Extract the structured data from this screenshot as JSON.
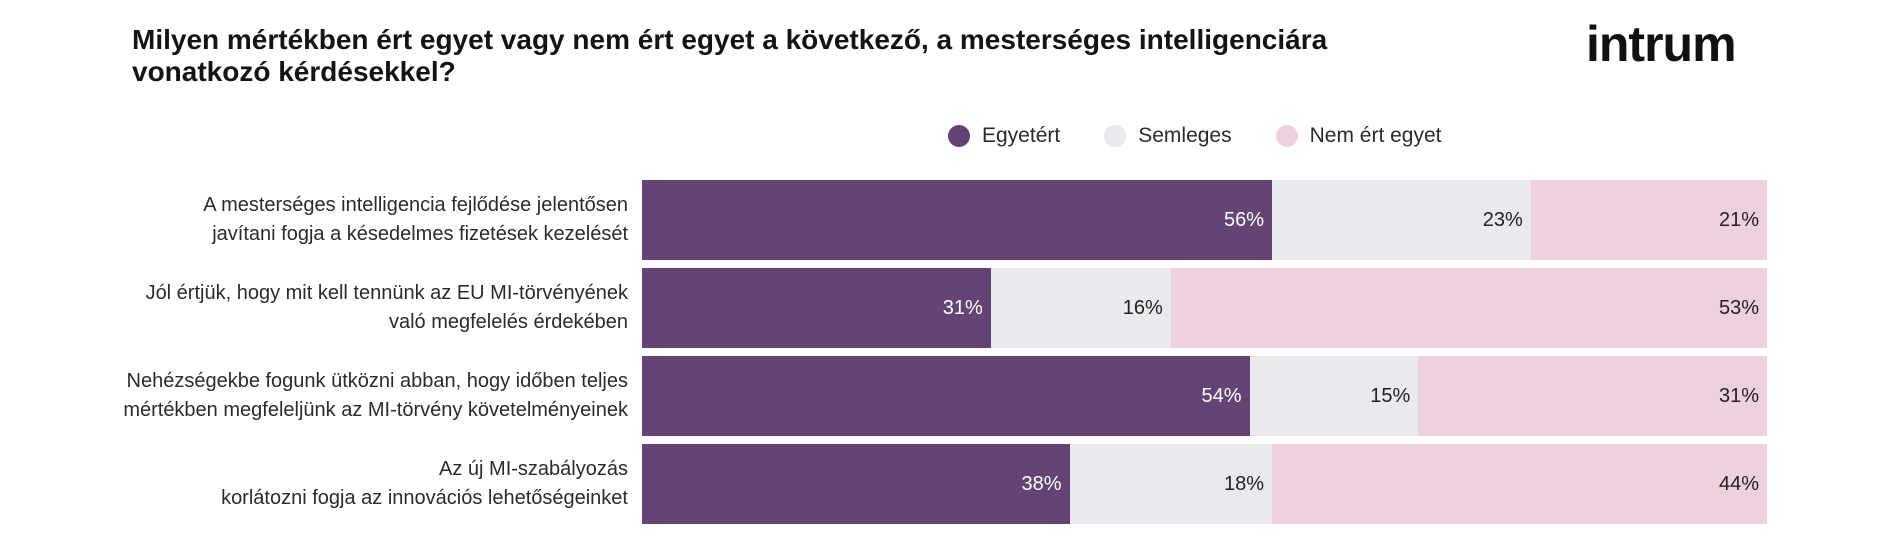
{
  "title": "Milyen mértékben ért egyet vagy nem ért egyet a következő, a mesterséges intelligenciára vonatkozó kérdésekkel?",
  "logo_text": "intrum",
  "colors": {
    "agree": "#634474",
    "neutral": "#e9e9ee",
    "disagree": "#efd0df",
    "agree_text": "#ffffff",
    "other_text": "#222222"
  },
  "legend": [
    {
      "label": "Egyetért",
      "key": "agree"
    },
    {
      "label": "Semleges",
      "key": "neutral"
    },
    {
      "label": "Nem ért egyet",
      "key": "disagree"
    }
  ],
  "chart_data": {
    "type": "bar",
    "orientation": "horizontal",
    "stacked": true,
    "title": "Milyen mértékben ért egyet vagy nem ért egyet a következő, a mesterséges intelligenciára vonatkozó kérdésekkel?",
    "legend_position": "top",
    "categories": [
      [
        "A mesterséges intelligencia fejlődése jelentősen",
        "javítani fogja a késedelmes fizetések kezelését"
      ],
      [
        "Jól értjük, hogy mit kell tennünk az EU MI-törvényének",
        "való megfelelés érdekében"
      ],
      [
        "Nehézségekbe fogunk ütközni  abban, hogy időben teljes",
        "mértékben megfeleljünk az MI-törvény   követelményeinek"
      ],
      [
        "Az új MI-szabályozás",
        "korlátozni fogja az innovációs lehetőségeinket"
      ]
    ],
    "series": [
      {
        "name": "Egyetért",
        "values": [
          56,
          31,
          54,
          38
        ],
        "labels": [
          "56%",
          "31%",
          "54%",
          "38%"
        ]
      },
      {
        "name": "Semleges",
        "values": [
          23,
          16,
          15,
          18
        ],
        "labels": [
          "23%",
          "16%",
          "15%",
          "18%"
        ]
      },
      {
        "name": "Nem ért egyet",
        "values": [
          21,
          53,
          31,
          44
        ],
        "labels": [
          "21%",
          "53%",
          "31%",
          "44%"
        ]
      }
    ]
  }
}
